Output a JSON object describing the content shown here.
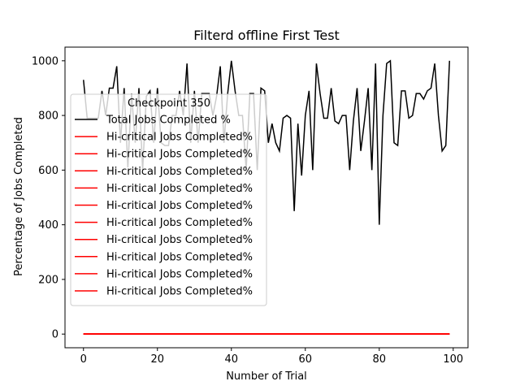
{
  "chart_data": {
    "type": "line",
    "title": "Filterd offline First Test",
    "xlabel": "Number of Trial",
    "ylabel": "Percentage of Jobs Completed",
    "xlim": [
      -5,
      104
    ],
    "ylim": [
      -50,
      1050
    ],
    "xticks": [
      0,
      20,
      40,
      60,
      80,
      100
    ],
    "yticks": [
      0,
      200,
      400,
      600,
      800,
      1000
    ],
    "grid": false,
    "legend": {
      "title": "Checkpoint 350",
      "placement": "center-left"
    },
    "series": [
      {
        "name": "Total Jobs Completed %",
        "color": "#000000",
        "x": [
          0,
          1,
          2,
          3,
          4,
          5,
          6,
          7,
          8,
          9,
          10,
          11,
          12,
          13,
          14,
          15,
          16,
          17,
          18,
          19,
          20,
          21,
          22,
          23,
          24,
          25,
          26,
          27,
          28,
          29,
          30,
          31,
          32,
          33,
          34,
          35,
          36,
          37,
          38,
          39,
          40,
          41,
          42,
          43,
          44,
          45,
          46,
          47,
          48,
          49,
          50,
          51,
          52,
          53,
          54,
          55,
          56,
          57,
          58,
          59,
          60,
          61,
          62,
          63,
          64,
          65,
          66,
          67,
          68,
          69,
          70,
          71,
          72,
          73,
          74,
          75,
          76,
          77,
          78,
          79,
          80,
          81,
          82,
          83,
          84,
          85,
          86,
          87,
          88,
          89,
          90,
          91,
          92,
          93,
          94,
          95,
          96,
          97,
          98,
          99
        ],
        "values": [
          930,
          790,
          790,
          790,
          790,
          890,
          800,
          900,
          900,
          980,
          700,
          900,
          610,
          880,
          700,
          900,
          600,
          870,
          890,
          700,
          900,
          700,
          690,
          690,
          800,
          800,
          890,
          800,
          990,
          700,
          890,
          700,
          880,
          880,
          880,
          800,
          870,
          980,
          700,
          880,
          1000,
          890,
          800,
          800,
          600,
          880,
          880,
          600,
          900,
          890,
          700,
          770,
          700,
          670,
          790,
          800,
          790,
          450,
          770,
          580,
          800,
          890,
          600,
          990,
          880,
          790,
          790,
          900,
          780,
          770,
          800,
          800,
          600,
          780,
          900,
          670,
          780,
          900,
          600,
          990,
          400,
          800,
          990,
          1000,
          700,
          690,
          890,
          890,
          790,
          800,
          880,
          880,
          860,
          890,
          900,
          990,
          800,
          670,
          690,
          1000
        ]
      },
      {
        "name": "Hi-critical Jobs Completed%",
        "color": "#ff0000",
        "x": [
          0,
          99
        ],
        "values": [
          0,
          0
        ]
      },
      {
        "name": "Hi-critical Jobs Completed%",
        "color": "#ff0000",
        "x": [
          0,
          99
        ],
        "values": [
          0,
          0
        ]
      },
      {
        "name": "Hi-critical Jobs Completed%",
        "color": "#ff0000",
        "x": [
          0,
          99
        ],
        "values": [
          0,
          0
        ]
      },
      {
        "name": "Hi-critical Jobs Completed%",
        "color": "#ff0000",
        "x": [
          0,
          99
        ],
        "values": [
          0,
          0
        ]
      },
      {
        "name": "Hi-critical Jobs Completed%",
        "color": "#ff0000",
        "x": [
          0,
          99
        ],
        "values": [
          0,
          0
        ]
      },
      {
        "name": "Hi-critical Jobs Completed%",
        "color": "#ff0000",
        "x": [
          0,
          99
        ],
        "values": [
          0,
          0
        ]
      },
      {
        "name": "Hi-critical Jobs Completed%",
        "color": "#ff0000",
        "x": [
          0,
          99
        ],
        "values": [
          0,
          0
        ]
      },
      {
        "name": "Hi-critical Jobs Completed%",
        "color": "#ff0000",
        "x": [
          0,
          99
        ],
        "values": [
          0,
          0
        ]
      },
      {
        "name": "Hi-critical Jobs Completed%",
        "color": "#ff0000",
        "x": [
          0,
          99
        ],
        "values": [
          0,
          0
        ]
      },
      {
        "name": "Hi-critical Jobs Completed%",
        "color": "#ff0000",
        "x": [
          0,
          99
        ],
        "values": [
          0,
          0
        ]
      }
    ]
  }
}
